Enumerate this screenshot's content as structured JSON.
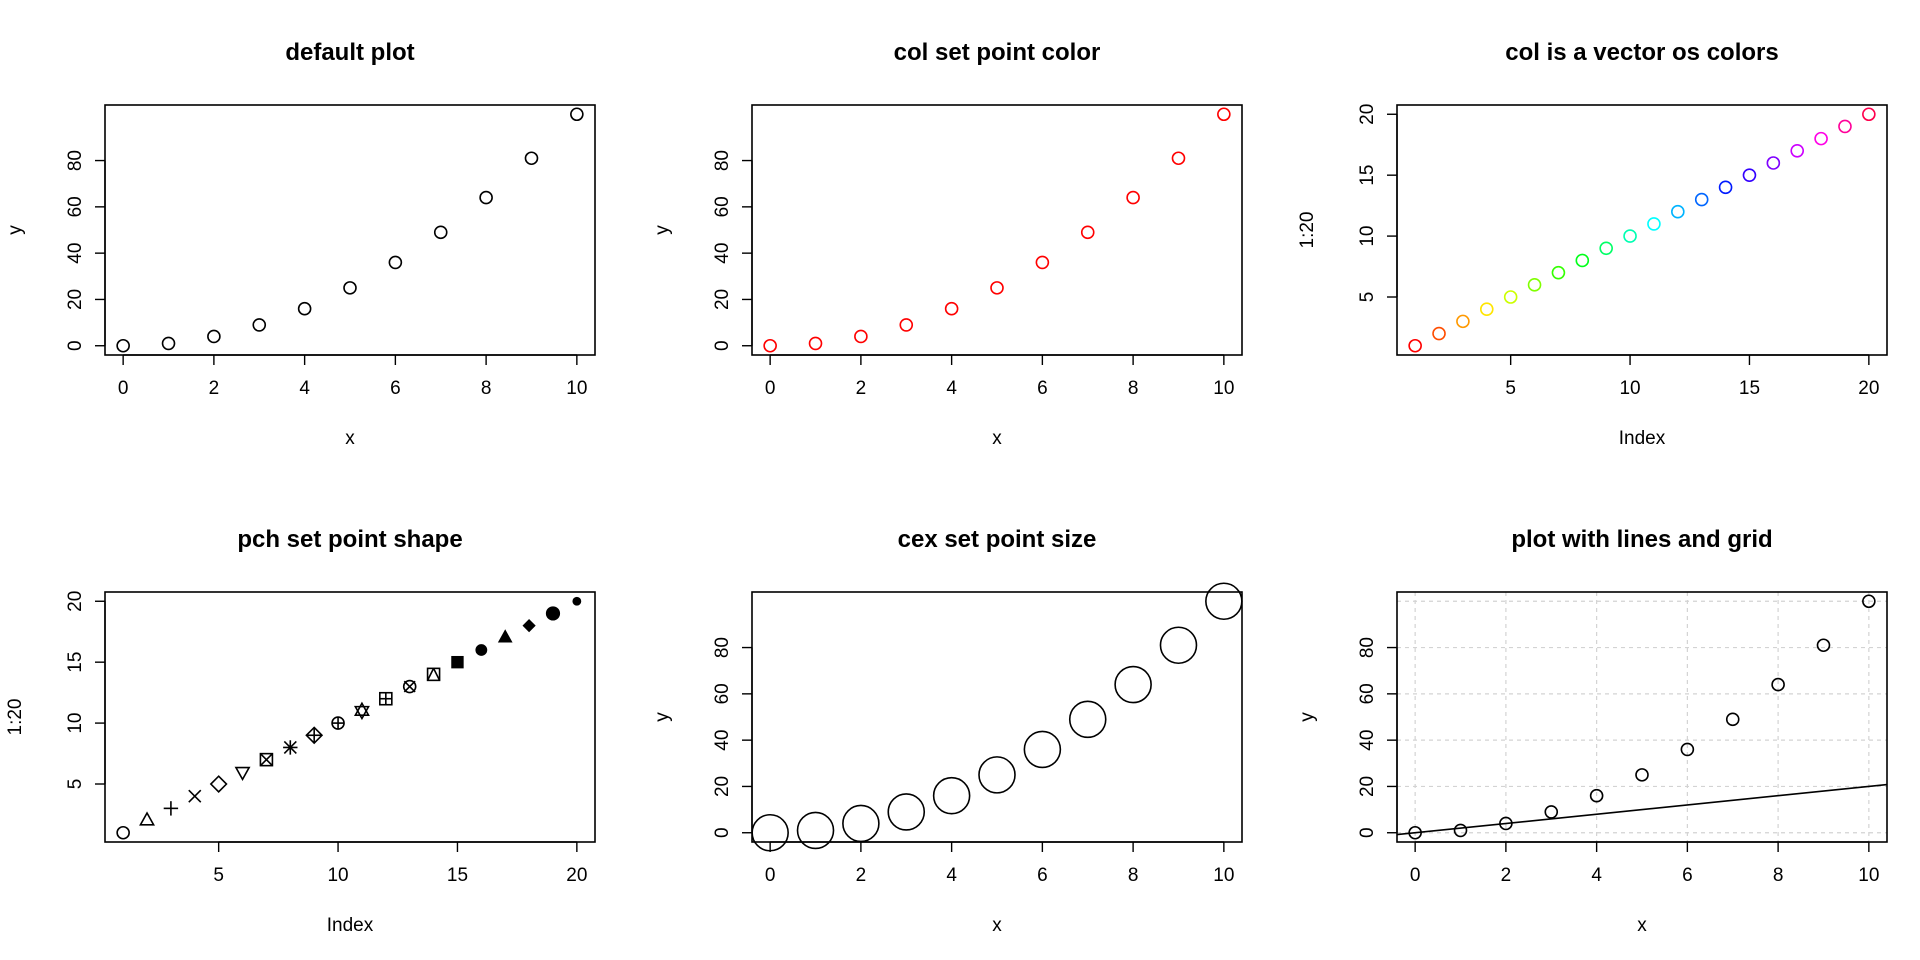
{
  "chart_data": [
    {
      "type": "scatter",
      "title": "default plot",
      "xlabel": "x",
      "ylabel": "y",
      "x": [
        0,
        1,
        2,
        3,
        4,
        5,
        6,
        7,
        8,
        9,
        10
      ],
      "y": [
        0,
        1,
        4,
        9,
        16,
        25,
        36,
        49,
        64,
        81,
        100
      ],
      "xlim": [
        -0.4,
        10.4
      ],
      "ylim": [
        -4,
        104
      ],
      "xticks": [
        0,
        2,
        4,
        6,
        8,
        10
      ],
      "yticks": [
        0,
        20,
        40,
        60,
        80
      ],
      "point_color": "#000000",
      "point_shape": "open-circle",
      "grid": false
    },
    {
      "type": "scatter",
      "title": "col set point color",
      "xlabel": "x",
      "ylabel": "y",
      "x": [
        0,
        1,
        2,
        3,
        4,
        5,
        6,
        7,
        8,
        9,
        10
      ],
      "y": [
        0,
        1,
        4,
        9,
        16,
        25,
        36,
        49,
        64,
        81,
        100
      ],
      "xlim": [
        -0.4,
        10.4
      ],
      "ylim": [
        -4,
        104
      ],
      "xticks": [
        0,
        2,
        4,
        6,
        8,
        10
      ],
      "yticks": [
        0,
        20,
        40,
        60,
        80
      ],
      "point_color": "#ff0000",
      "point_shape": "open-circle",
      "grid": false
    },
    {
      "type": "scatter",
      "title": "col is a vector os colors",
      "xlabel": "Index",
      "ylabel": "1:20",
      "x": [
        1,
        2,
        3,
        4,
        5,
        6,
        7,
        8,
        9,
        10,
        11,
        12,
        13,
        14,
        15,
        16,
        17,
        18,
        19,
        20
      ],
      "y": [
        1,
        2,
        3,
        4,
        5,
        6,
        7,
        8,
        9,
        10,
        11,
        12,
        13,
        14,
        15,
        16,
        17,
        18,
        19,
        20
      ],
      "xlim": [
        0.24,
        20.76
      ],
      "ylim": [
        0.24,
        20.76
      ],
      "xticks": [
        5,
        10,
        15,
        20
      ],
      "yticks": [
        5,
        10,
        15,
        20
      ],
      "point_colors": [
        "#ff0000",
        "#ff4d00",
        "#ff9900",
        "#ffe500",
        "#ccff00",
        "#80ff00",
        "#33ff00",
        "#00ff19",
        "#00ff66",
        "#00ffb2",
        "#00ffff",
        "#00b3ff",
        "#0066ff",
        "#001aff",
        "#3300ff",
        "#7f00ff",
        "#cc00ff",
        "#ff00e6",
        "#ff0099",
        "#ff004d"
      ],
      "point_shape": "open-circle",
      "grid": false
    },
    {
      "type": "scatter",
      "title": "pch set point shape",
      "xlabel": "Index",
      "ylabel": "1:20",
      "x": [
        1,
        2,
        3,
        4,
        5,
        6,
        7,
        8,
        9,
        10,
        11,
        12,
        13,
        14,
        15,
        16,
        17,
        18,
        19,
        20
      ],
      "y": [
        1,
        2,
        3,
        4,
        5,
        6,
        7,
        8,
        9,
        10,
        11,
        12,
        13,
        14,
        15,
        16,
        17,
        18,
        19,
        20
      ],
      "xlim": [
        0.24,
        20.76
      ],
      "ylim": [
        0.24,
        20.76
      ],
      "xticks": [
        5,
        10,
        15,
        20
      ],
      "yticks": [
        5,
        10,
        15,
        20
      ],
      "pch": [
        1,
        2,
        3,
        4,
        5,
        6,
        7,
        8,
        9,
        10,
        11,
        12,
        13,
        14,
        15,
        16,
        17,
        18,
        19,
        20
      ],
      "point_color": "#000000",
      "grid": false
    },
    {
      "type": "scatter",
      "title": "cex set point size",
      "xlabel": "x",
      "ylabel": "y",
      "x": [
        0,
        1,
        2,
        3,
        4,
        5,
        6,
        7,
        8,
        9,
        10
      ],
      "y": [
        0,
        1,
        4,
        9,
        16,
        25,
        36,
        49,
        64,
        81,
        100
      ],
      "xlim": [
        -0.4,
        10.4
      ],
      "ylim": [
        -4,
        104
      ],
      "xticks": [
        0,
        2,
        4,
        6,
        8,
        10
      ],
      "yticks": [
        0,
        20,
        40,
        60,
        80
      ],
      "point_color": "#000000",
      "point_shape": "open-circle",
      "cex": 3,
      "grid": false
    },
    {
      "type": "scatter",
      "title": "plot with lines and grid",
      "xlabel": "x",
      "ylabel": "y",
      "x": [
        0,
        1,
        2,
        3,
        4,
        5,
        6,
        7,
        8,
        9,
        10
      ],
      "y": [
        0,
        1,
        4,
        9,
        16,
        25,
        36,
        49,
        64,
        81,
        100
      ],
      "xlim": [
        -0.4,
        10.4
      ],
      "ylim": [
        -4,
        104
      ],
      "xticks": [
        0,
        2,
        4,
        6,
        8,
        10
      ],
      "yticks": [
        0,
        20,
        40,
        60,
        80
      ],
      "point_color": "#000000",
      "point_shape": "open-circle",
      "grid": true,
      "grid_color": "#d3d3d3",
      "abline": {
        "intercept": 0,
        "slope": 2
      }
    }
  ]
}
